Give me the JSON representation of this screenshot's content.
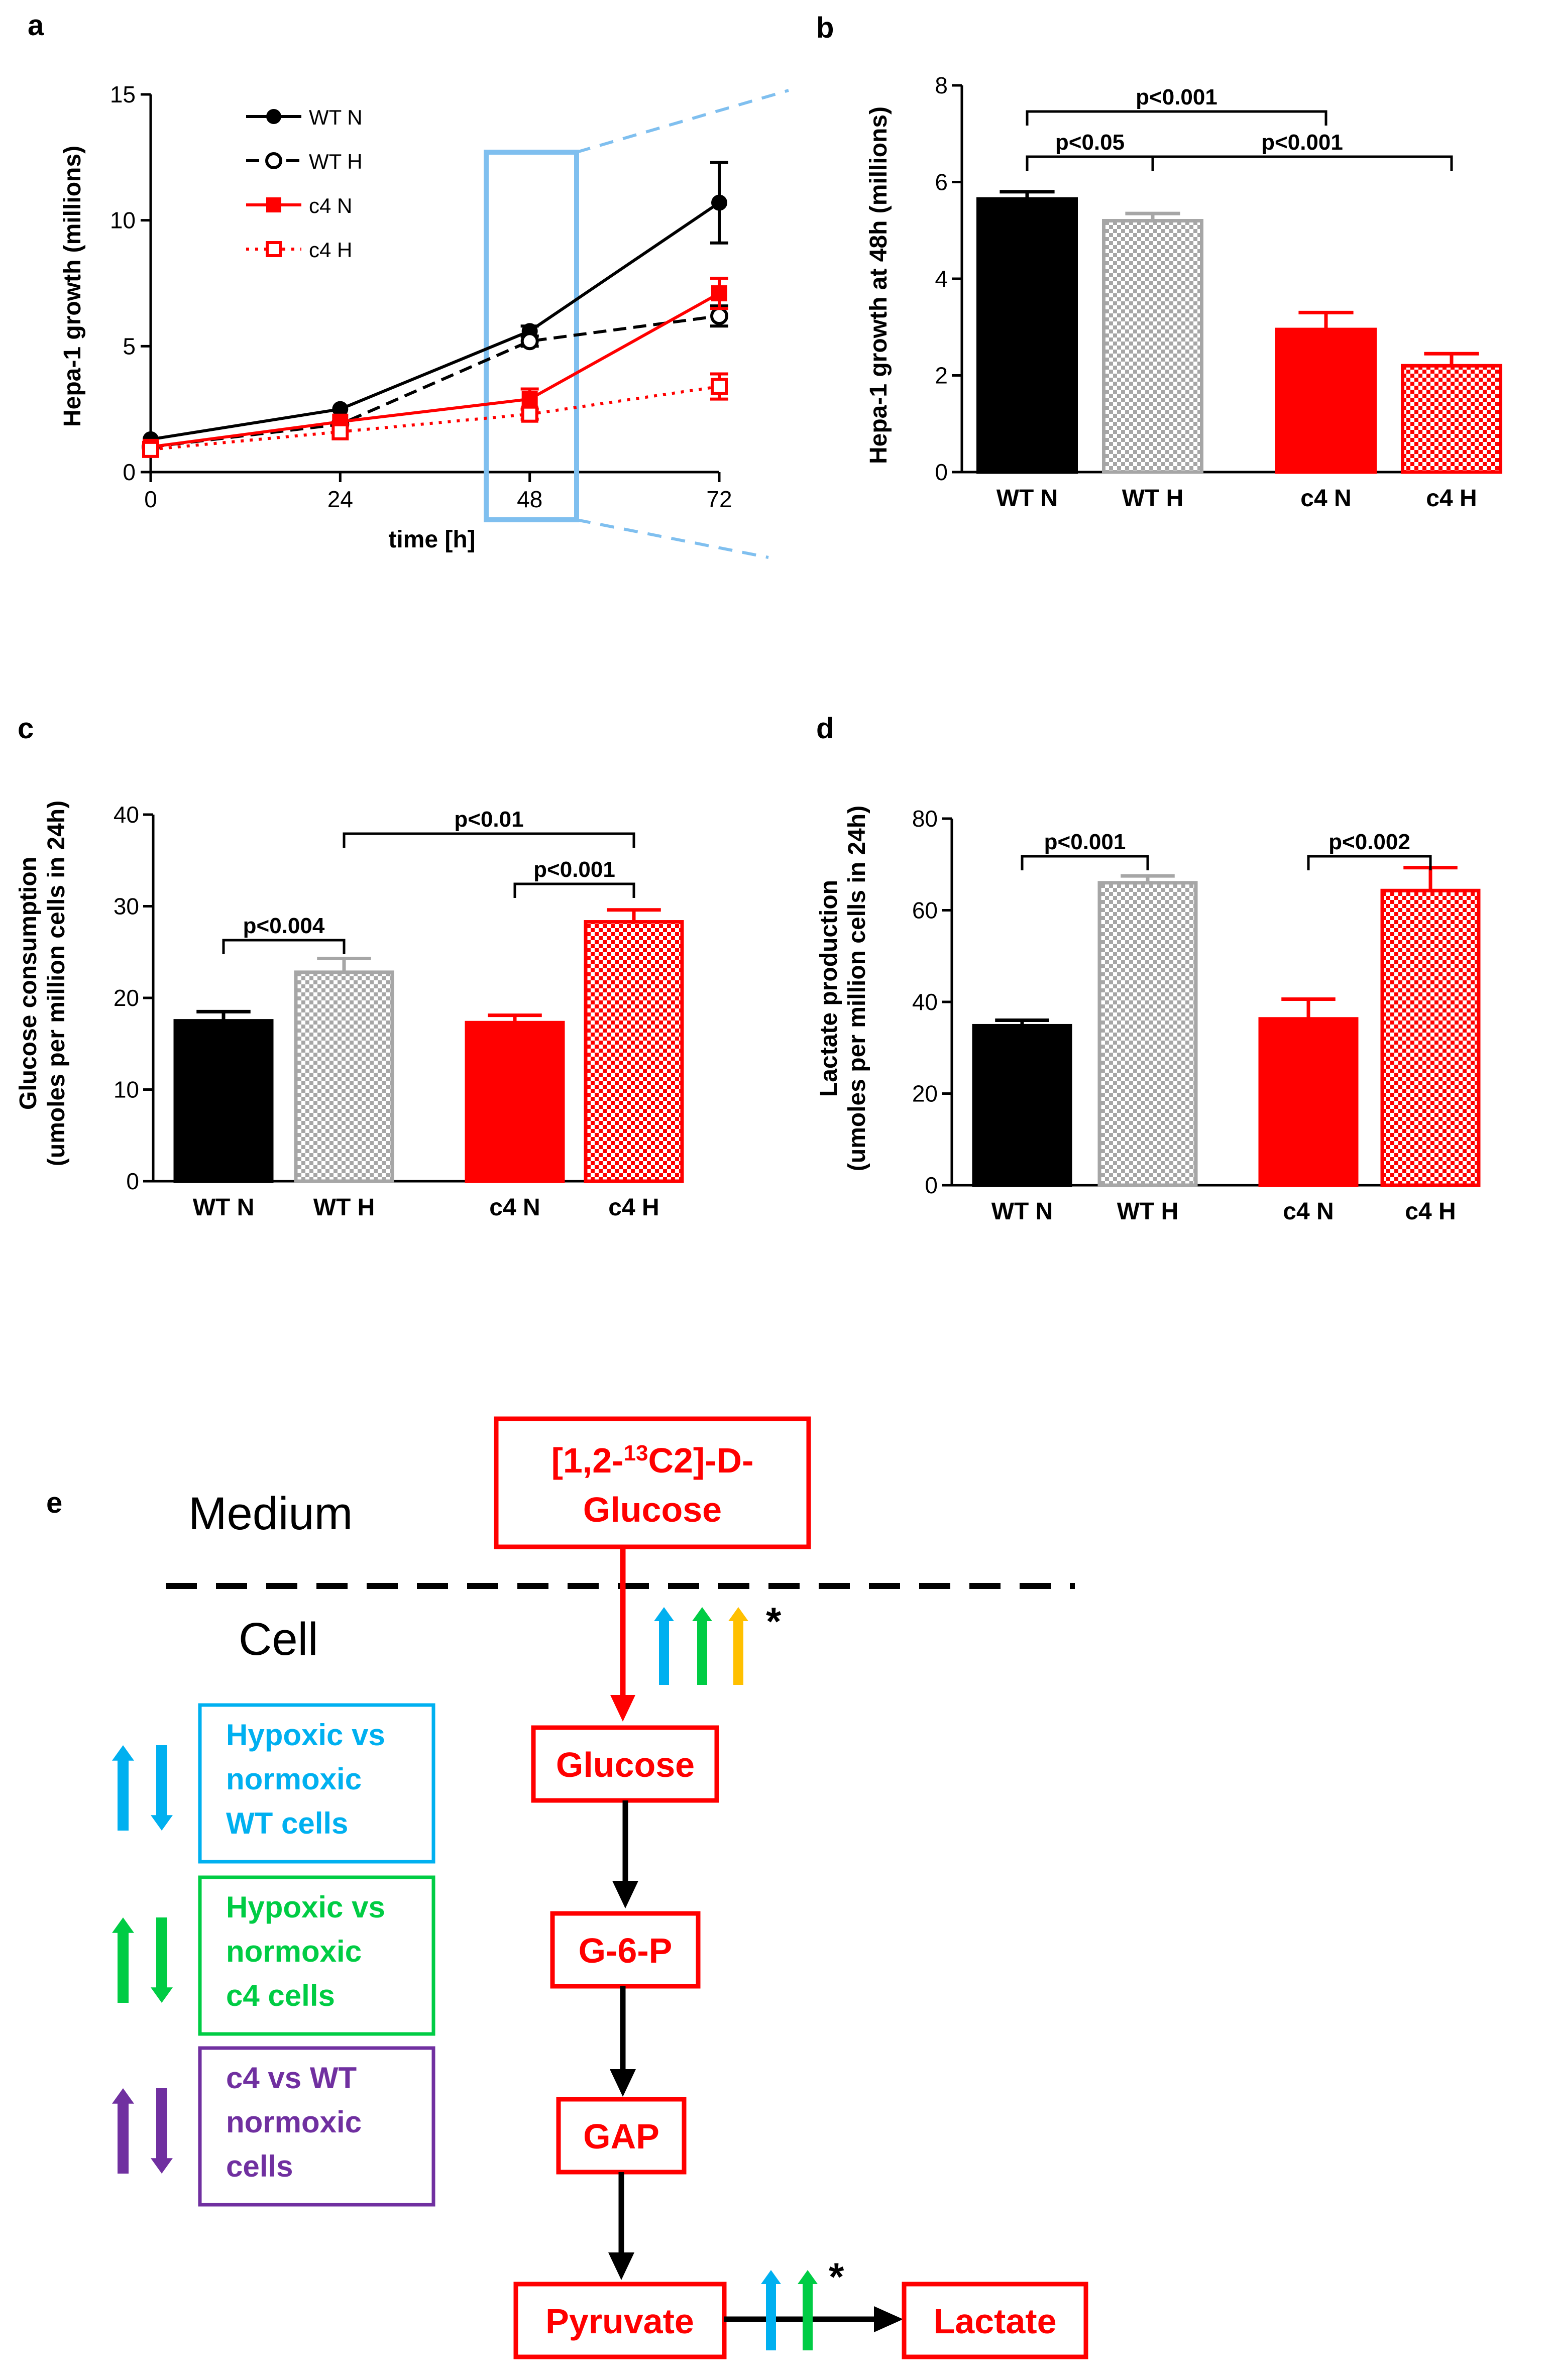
{
  "colors": {
    "black": "#000000",
    "red": "#ff0000",
    "gray": "#a6a6a6",
    "light_blue": "#7fbfef",
    "cyan": "#00b0f0",
    "green": "#00cc44",
    "purple": "#7030a0",
    "yellow": "#ffc000"
  },
  "chart_data": [
    {
      "panel": "a",
      "type": "line",
      "ylabel": "Hepa-1 growth (millions)",
      "xlabel": "time [h]",
      "x": [
        0,
        24,
        48,
        72
      ],
      "xticks": [
        "0",
        "24",
        "48",
        "72"
      ],
      "yticks": [
        "0",
        "5",
        "10",
        "15"
      ],
      "ylim": [
        0,
        15
      ],
      "legend_position": "top-left",
      "series": [
        {
          "name": "WT N",
          "values": [
            1.3,
            2.5,
            5.6,
            10.7
          ],
          "errors": [
            0.1,
            0.1,
            0.2,
            1.6
          ],
          "style": "solid",
          "color": "#000000",
          "marker": "filled-circle"
        },
        {
          "name": "WT H",
          "values": [
            1.0,
            1.9,
            5.2,
            6.2
          ],
          "errors": [
            0.1,
            0.1,
            0.2,
            0.4
          ],
          "style": "dashed",
          "color": "#000000",
          "marker": "open-circle"
        },
        {
          "name": "c4 N",
          "values": [
            1.0,
            2.0,
            2.9,
            7.1
          ],
          "errors": [
            0.1,
            0.1,
            0.4,
            0.6
          ],
          "style": "solid",
          "color": "#ff0000",
          "marker": "filled-square"
        },
        {
          "name": "c4 H",
          "values": [
            0.9,
            1.6,
            2.3,
            3.4
          ],
          "errors": [
            0.1,
            0.1,
            0.2,
            0.5
          ],
          "style": "dotted",
          "color": "#ff0000",
          "marker": "open-square"
        }
      ],
      "highlight": "48 h"
    },
    {
      "panel": "b",
      "type": "bar",
      "ylabel": "Hepa-1 growth at 48h (millions)",
      "categories": [
        "WT N",
        "WT H",
        "c4 N",
        "c4 H"
      ],
      "values": [
        5.65,
        5.2,
        2.95,
        2.2
      ],
      "errors": [
        0.15,
        0.15,
        0.35,
        0.25
      ],
      "ylim": [
        0,
        8
      ],
      "yticks": [
        "0",
        "2",
        "4",
        "6",
        "8"
      ],
      "significance": [
        {
          "from": 0,
          "to": 2,
          "label": "p<0.001"
        },
        {
          "from": 0,
          "to": 1,
          "label": "p<0.05"
        },
        {
          "from": 1,
          "to": 3,
          "label": "p<0.001"
        }
      ]
    },
    {
      "panel": "c",
      "type": "bar",
      "ylabel_line1": "Glucose consumption",
      "ylabel_line2": "(umoles per million cells in 24h)",
      "categories": [
        "WT N",
        "WT H",
        "c4 N",
        "c4 H"
      ],
      "values": [
        17.5,
        22.8,
        17.3,
        28.3
      ],
      "errors": [
        1.0,
        1.5,
        0.8,
        1.3
      ],
      "ylim": [
        0,
        40
      ],
      "yticks": [
        "0",
        "10",
        "20",
        "30",
        "40"
      ],
      "significance": [
        {
          "from": 1,
          "to": 3,
          "label": "p<0.01"
        },
        {
          "from": 2,
          "to": 3,
          "label": "p<0.001"
        },
        {
          "from": 0,
          "to": 1,
          "label": "p<0.004"
        }
      ]
    },
    {
      "panel": "d",
      "type": "bar",
      "ylabel_line1": "Lactate production",
      "ylabel_line2": "(umoles per million cells in 24h)",
      "categories": [
        "WT N",
        "WT H",
        "c4 N",
        "c4 H"
      ],
      "values": [
        34.8,
        66.0,
        36.3,
        64.3
      ],
      "errors": [
        1.2,
        1.5,
        4.3,
        5.0
      ],
      "ylim": [
        0,
        80
      ],
      "yticks": [
        "0",
        "20",
        "40",
        "60",
        "80"
      ],
      "significance": [
        {
          "from": 0,
          "to": 1,
          "label": "p<0.001"
        },
        {
          "from": 2,
          "to": 3,
          "label": "p<0.002"
        }
      ]
    }
  ],
  "panel_labels": {
    "a": "a",
    "b": "b",
    "c": "c",
    "d": "d",
    "e": "e"
  },
  "diagram": {
    "medium_label": "Medium",
    "cell_label": "Cell",
    "glucose_source_line1": "[1,2-",
    "glucose_source_sup": "13",
    "glucose_source_line1_end": "C2]-D-",
    "glucose_source_line2": "Glucose",
    "nodes": [
      "Glucose",
      "G-6-P",
      "GAP",
      "Pyruvate",
      "Lactate"
    ],
    "asterisk": "*",
    "legend": [
      {
        "lines": [
          "Hypoxic vs",
          "normoxic",
          "WT cells"
        ],
        "color": "#00b0f0"
      },
      {
        "lines": [
          "Hypoxic vs",
          "normoxic",
          "c4 cells"
        ],
        "color": "#00cc44"
      },
      {
        "lines": [
          "c4 vs WT",
          "normoxic",
          "cells"
        ],
        "color": "#7030a0"
      }
    ]
  }
}
